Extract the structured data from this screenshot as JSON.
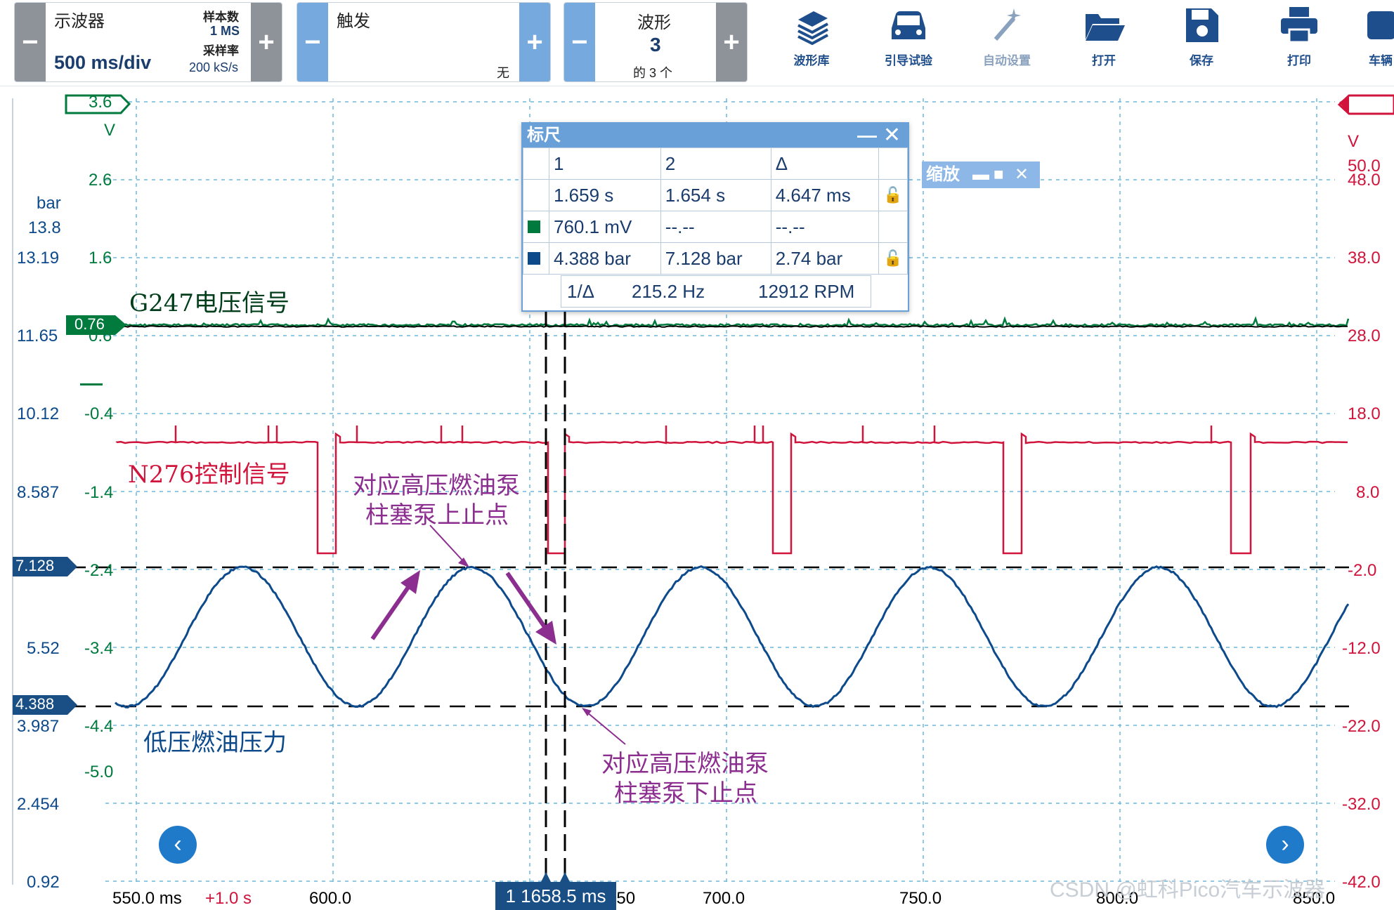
{
  "toolbar": {
    "scope": {
      "title": "示波器",
      "timebase": "500 ms/div",
      "samples_label": "样本数",
      "samples_value": "1 MS",
      "rate_label": "采样率",
      "rate_value": "200 kS/s",
      "minus": "−",
      "plus": "+"
    },
    "trigger": {
      "title": "触发",
      "mode": "无",
      "minus": "−",
      "plus": "+"
    },
    "waveform": {
      "title": "波形",
      "index": "3",
      "of": "的 3 个",
      "minus": "−",
      "plus": "+"
    },
    "tools": [
      {
        "label": "波形库",
        "icon": "waveform-library-icon"
      },
      {
        "label": "引导试验",
        "icon": "car-icon"
      },
      {
        "label": "自动设置",
        "icon": "magic-wand-icon"
      },
      {
        "label": "打开",
        "icon": "folder-open-icon"
      },
      {
        "label": "保存",
        "icon": "save-icon"
      },
      {
        "label": "打印",
        "icon": "printer-icon"
      },
      {
        "label": "车辆",
        "icon": "vehicle-icon"
      }
    ]
  },
  "axes": {
    "green_top": "3.6",
    "green_unit": "V",
    "green_ticks": [
      "2.6",
      "1.6",
      "0.6",
      "-0.4",
      "-1.4",
      "-2.4",
      "-3.4",
      "-4.4",
      "-5.0"
    ],
    "green_marker": "0.76",
    "blue_unit": "bar",
    "blue_ticks": [
      "13.8",
      "13.19",
      "11.65",
      "10.12",
      "8.587",
      "5.52",
      "3.987",
      "2.454",
      "0.92"
    ],
    "blue_marker_top": "7.128",
    "blue_marker_bottom": "4.388",
    "red_unit": "V",
    "red_ticks": [
      "50.0",
      "48.0",
      "38.0",
      "28.0",
      "18.0",
      "8.0",
      "-2.0",
      "-12.0",
      "-22.0",
      "-32.0",
      "-42.0"
    ],
    "x_ticks": [
      "550.0 ms",
      "600.0",
      "700.0",
      "750.0",
      "800.0",
      "850.0"
    ],
    "x_offset": "+1.0 s",
    "x_partial": "650"
  },
  "traces": {
    "green_label": "G247电压信号",
    "red_label": "N276控制信号",
    "blue_label": "低压燃油压力"
  },
  "annotations": {
    "top_line1": "对应高压燃油泵",
    "top_line2": "柱塞泵上止点",
    "bottom_line1": "对应高压燃油泵",
    "bottom_line2": "柱塞泵下止点"
  },
  "ruler": {
    "title": "标尺",
    "col1": "1",
    "col2": "2",
    "coldelta": "Δ",
    "time1": "1.659 s",
    "time2": "1.654 s",
    "timedelta": "4.647 ms",
    "green1": "760.1 mV",
    "green2": "--.--",
    "greendelta": "--.--",
    "blue1": "4.388 bar",
    "blue2": "7.128 bar",
    "bluedelta": "2.74 bar",
    "freq_label": "1/Δ",
    "freq": "215.2 Hz",
    "rpm": "12912 RPM"
  },
  "zoom": {
    "label": "缩放"
  },
  "cursor": {
    "label": "1  1658.5 ms"
  },
  "watermark": "CSDN @虹科Pico汽车示波器",
  "colors": {
    "green": "#007a3d",
    "blue": "#0d4a8c",
    "red": "#d0143b",
    "annotation": "#8b2e8f",
    "grid": "#6cb8dc",
    "accent": "#6aa0d8"
  }
}
